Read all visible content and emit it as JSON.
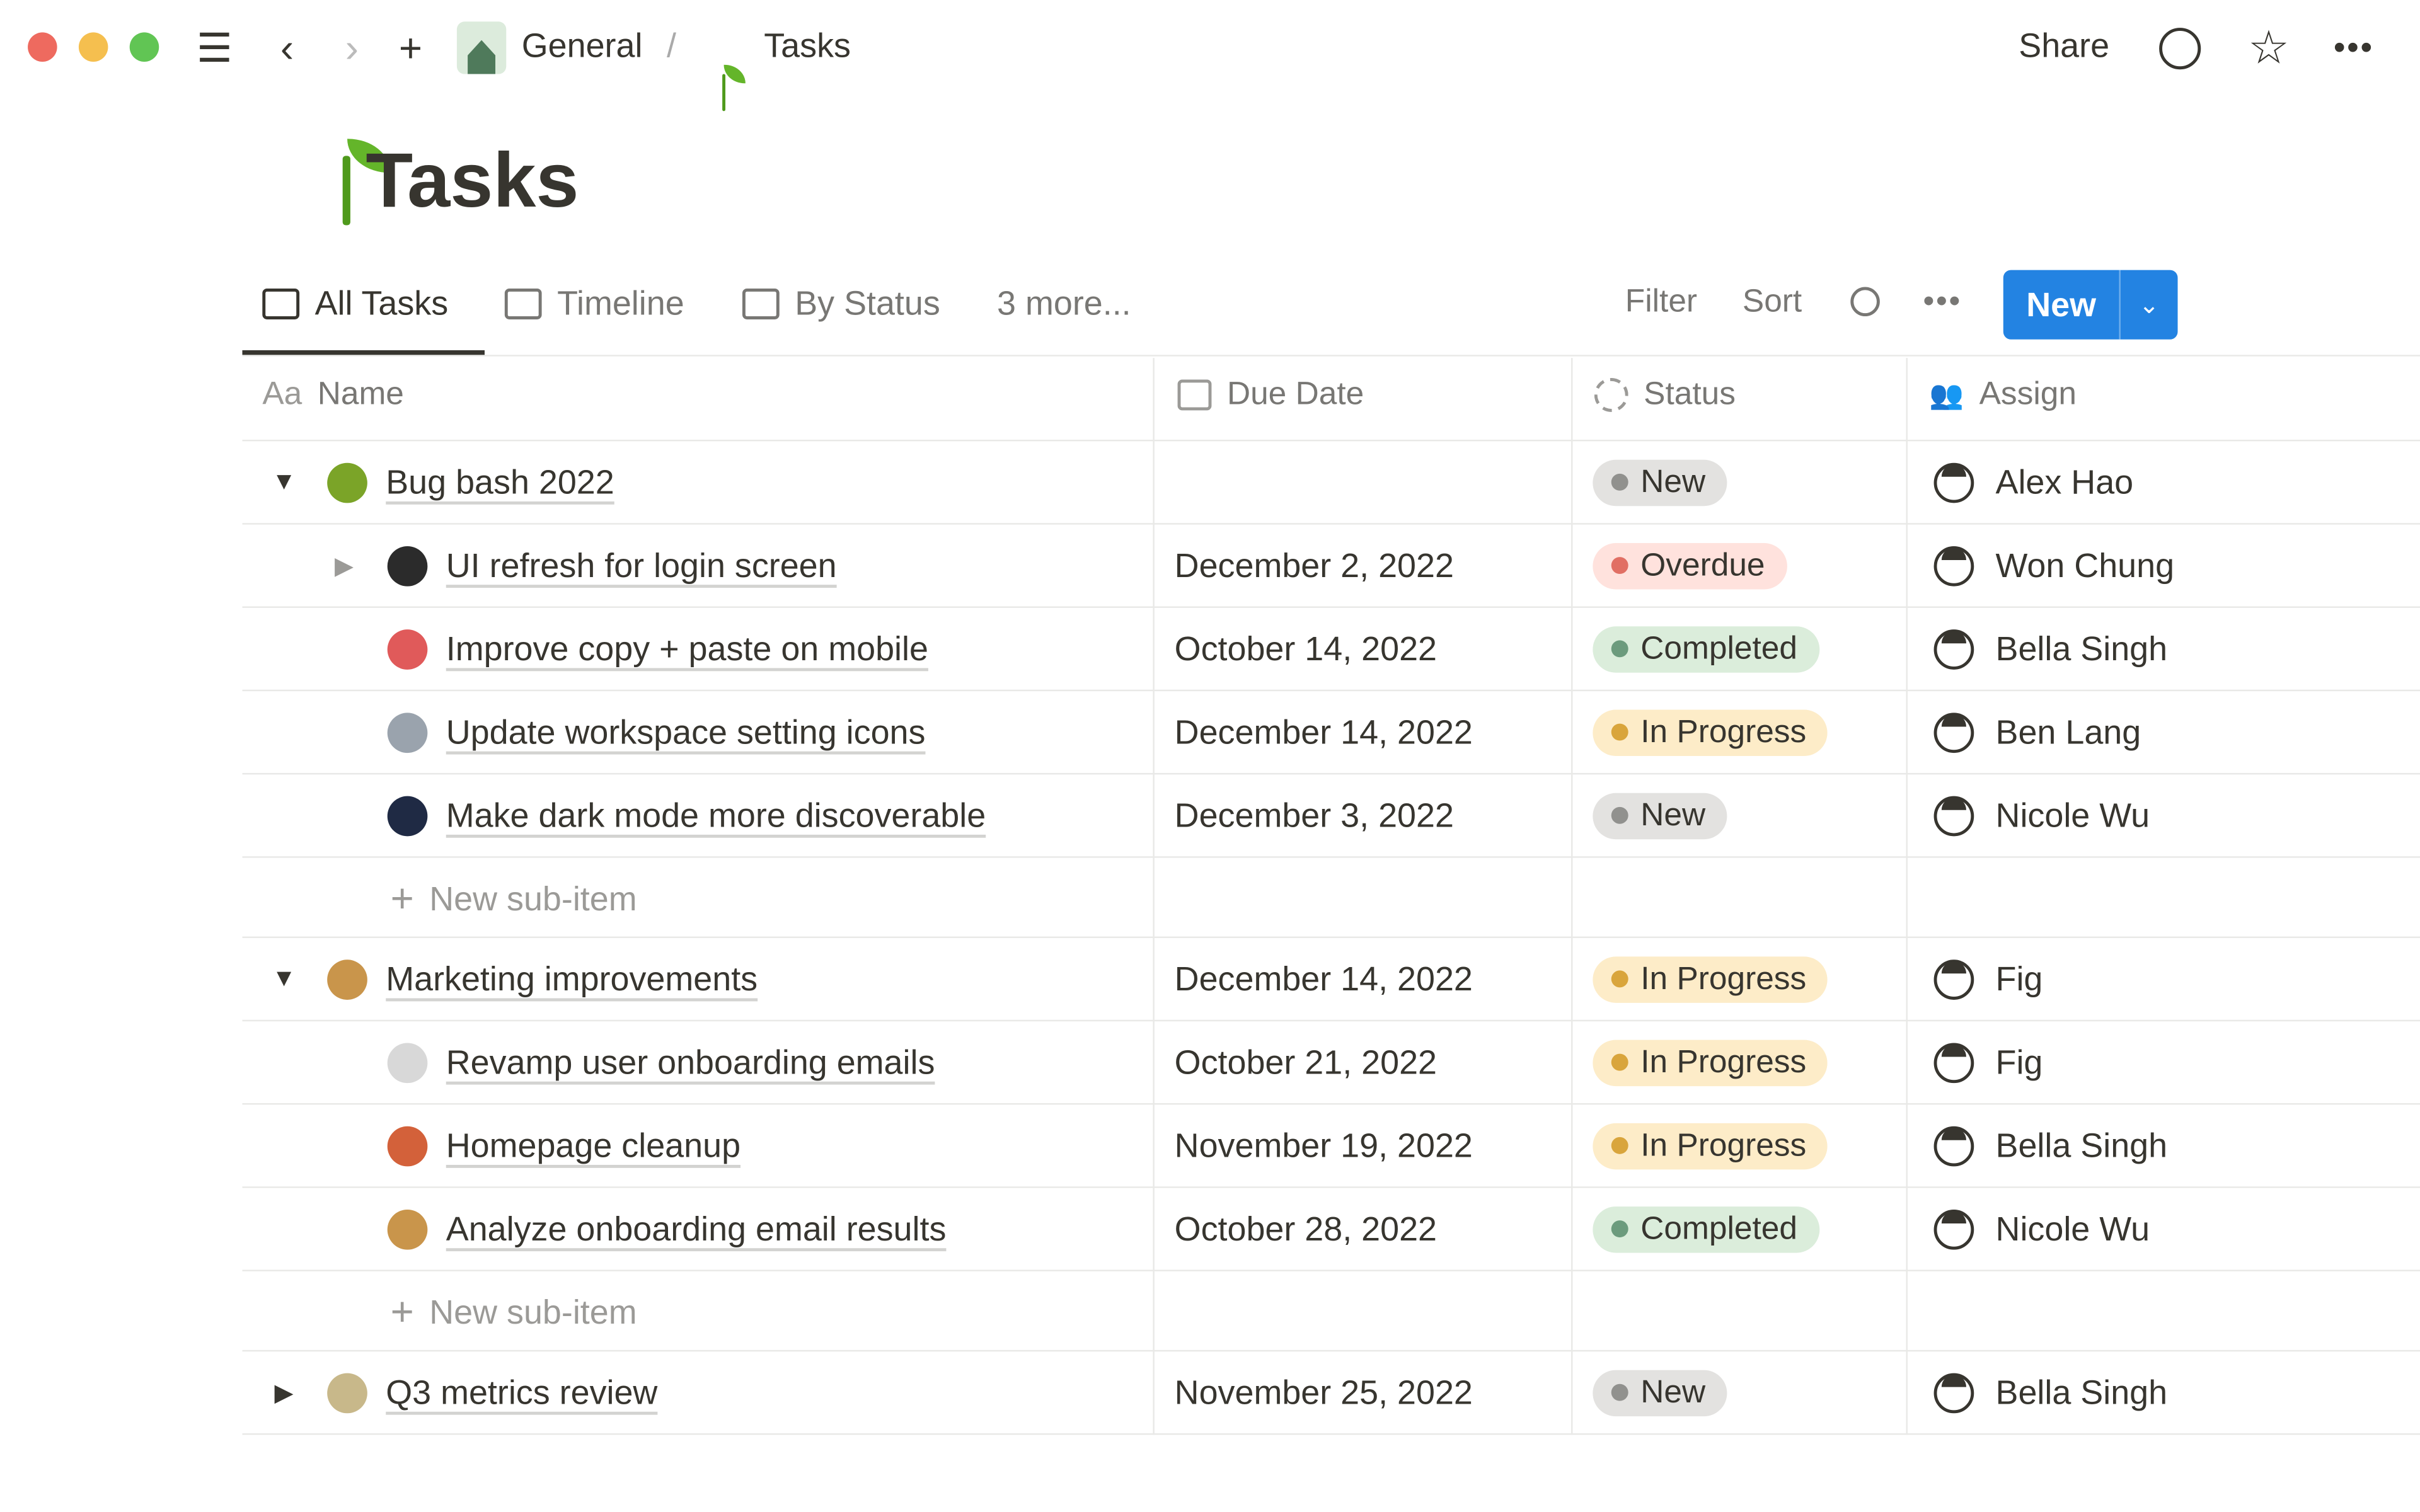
{
  "topbar": {
    "breadcrumb": [
      {
        "label": "General",
        "icon": "house-icon"
      },
      {
        "label": "Tasks",
        "icon": "seedling-icon"
      }
    ],
    "share": "Share",
    "separator": "/"
  },
  "page": {
    "title": "Tasks",
    "icon": "seedling-icon"
  },
  "views": {
    "tabs": [
      {
        "label": "All Tasks",
        "icon": "table-icon",
        "active": true
      },
      {
        "label": "Timeline",
        "icon": "timeline-icon"
      },
      {
        "label": "By Status",
        "icon": "board-icon"
      }
    ],
    "more": "3 more...",
    "filter": "Filter",
    "sort": "Sort",
    "new": "New"
  },
  "columns": {
    "name_prefix": "Aa",
    "name": "Name",
    "due": "Due Date",
    "status": "Status",
    "assign": "Assign"
  },
  "status_colors": {
    "New": {
      "bg": "#e3e2e0",
      "dot": "#91918e"
    },
    "Overdue": {
      "bg": "#ffe2dd",
      "dot": "#e16f64"
    },
    "Completed": {
      "bg": "#dbeddb",
      "dot": "#6c9b7d"
    },
    "In Progress": {
      "bg": "#fdecc8",
      "dot": "#d9a53c"
    }
  },
  "accent": "#2383e2",
  "rows": [
    {
      "type": "item",
      "level": 0,
      "toggle": "expanded",
      "icon": "beetle-icon",
      "icon_color": "#7ba428",
      "name": "Bug bash 2022",
      "due": "",
      "status": "New",
      "assign": "Alex Hao"
    },
    {
      "type": "item",
      "level": 1,
      "toggle": "collapsed",
      "icon": "mobile-phone-arrow-icon",
      "icon_color": "#2b2b2b",
      "name": "UI refresh for login screen",
      "due": "December 2, 2022",
      "status": "Overdue",
      "assign": "Won Chung"
    },
    {
      "type": "item",
      "level": 1,
      "icon": "scissors-icon",
      "icon_color": "#e05a5a",
      "name": "Improve copy + paste on mobile",
      "due": "October 14, 2022",
      "status": "Completed",
      "assign": "Bella Singh"
    },
    {
      "type": "item",
      "level": 1,
      "icon": "magnifying-glass-icon",
      "icon_color": "#9aa3ad",
      "name": "Update workspace setting icons",
      "due": "December 14, 2022",
      "status": "In Progress",
      "assign": "Ben Lang"
    },
    {
      "type": "item",
      "level": 1,
      "icon": "new-moon-icon",
      "icon_color": "#1f2a44",
      "name": "Make dark mode more discoverable",
      "due": "December 3, 2022",
      "status": "New",
      "assign": "Nicole Wu"
    },
    {
      "type": "new",
      "label": "New sub-item"
    },
    {
      "type": "item",
      "level": 0,
      "toggle": "expanded",
      "icon": "detective-icon",
      "icon_color": "#c9954b",
      "name": "Marketing improvements",
      "due": "December 14, 2022",
      "status": "In Progress",
      "assign": "Fig"
    },
    {
      "type": "item",
      "level": 1,
      "icon": "envelope-icon",
      "icon_color": "#d8d8d8",
      "name": "Revamp user onboarding emails",
      "due": "October 21, 2022",
      "status": "In Progress",
      "assign": "Fig"
    },
    {
      "type": "item",
      "level": 1,
      "icon": "house-icon",
      "icon_color": "#d3613a",
      "name": "Homepage cleanup",
      "due": "November 19, 2022",
      "status": "In Progress",
      "assign": "Bella Singh"
    },
    {
      "type": "item",
      "level": 1,
      "icon": "detective-icon",
      "icon_color": "#c9954b",
      "name": "Analyze onboarding email results",
      "due": "October 28, 2022",
      "status": "Completed",
      "assign": "Nicole Wu"
    },
    {
      "type": "new",
      "label": "New sub-item"
    },
    {
      "type": "item",
      "level": 0,
      "toggle": "collapsed",
      "icon": "dvd-icon",
      "icon_color": "#c8b88a",
      "name": "Q3 metrics review",
      "due": "November 25, 2022",
      "status": "New",
      "assign": "Bella Singh"
    }
  ]
}
